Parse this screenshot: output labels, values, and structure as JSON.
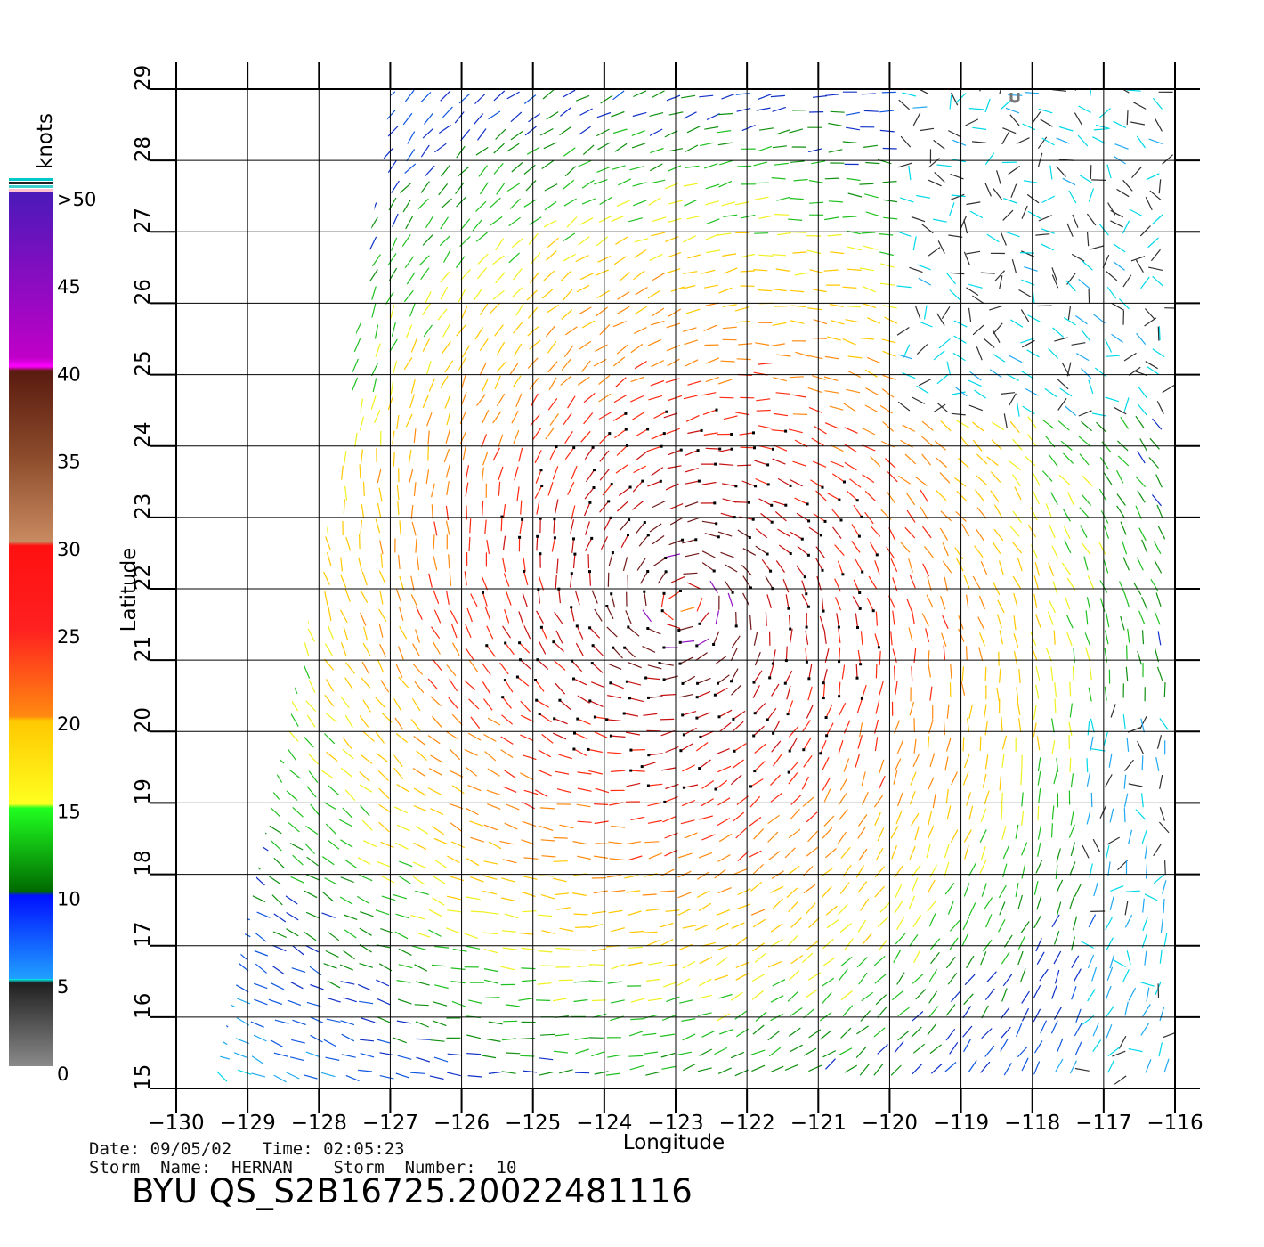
{
  "figure": {
    "x_label": "Longitude",
    "y_label": "Latitude",
    "x_ticks": [
      "−130",
      "−129",
      "−128",
      "−127",
      "−126",
      "−125",
      "−124",
      "−123",
      "−122",
      "−121",
      "−120",
      "−119",
      "−118",
      "−117",
      "−116"
    ],
    "y_ticks": [
      "15",
      "16",
      "17",
      "18",
      "19",
      "20",
      "21",
      "22",
      "23",
      "24",
      "25",
      "26",
      "27",
      "28",
      "29"
    ],
    "lon_range": [
      -130,
      -116
    ],
    "lat_range": [
      15,
      29
    ]
  },
  "colorbar": {
    "unit": "knots",
    "labels": [
      ">50",
      "45",
      "40",
      "35",
      "30",
      "25",
      "20",
      "15",
      "10",
      "5",
      "0"
    ],
    "levels": [
      50,
      45,
      40,
      35,
      30,
      25,
      20,
      15,
      10,
      5,
      0
    ]
  },
  "storm": {
    "center_lon": -122.9,
    "center_lat": 21.8,
    "max_wind_knots": 45
  },
  "info": {
    "date_line": "Date: 09/05/02   Time: 02:05:23",
    "storm_line": "Storm  Name:  HERNAN    Storm  Number:  10",
    "file_id": "BYU  QS_S2B16725.20022481116"
  }
}
